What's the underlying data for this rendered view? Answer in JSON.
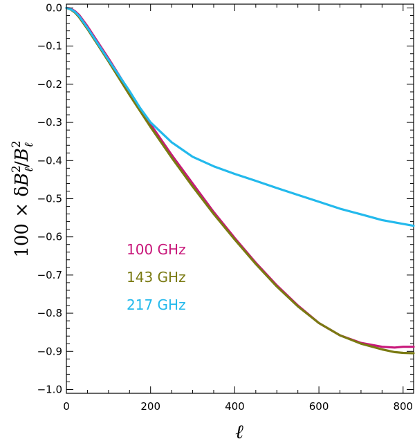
{
  "chart_data": {
    "type": "line",
    "title": "",
    "xlabel": "ℓ",
    "ylabel_parts": {
      "prefix": "100 × δ",
      "b": "B",
      "ell": "ℓ",
      "sq": "2",
      "slash": "/"
    },
    "xlim": [
      0,
      825
    ],
    "ylim": [
      -1.01,
      0.01
    ],
    "xticks": [
      0,
      200,
      400,
      600,
      800
    ],
    "xtick_labels": [
      "0",
      "200",
      "400",
      "600",
      "800"
    ],
    "yticks": [
      0.0,
      -0.1,
      -0.2,
      -0.3,
      -0.4,
      -0.5,
      -0.6,
      -0.7,
      -0.8,
      -0.9,
      -1.0
    ],
    "ytick_labels": [
      "0.0",
      "−0.1",
      "−0.2",
      "−0.3",
      "−0.4",
      "−0.5",
      "−0.6",
      "−0.7",
      "−0.8",
      "−0.9",
      "−1.0"
    ],
    "series": [
      {
        "name": "100 GHz",
        "color": "#c8177a",
        "x": [
          0,
          10,
          20,
          30,
          50,
          75,
          100,
          150,
          200,
          250,
          300,
          350,
          400,
          450,
          500,
          550,
          600,
          650,
          700,
          750,
          780,
          800,
          825
        ],
        "y": [
          0.0,
          -0.002,
          -0.008,
          -0.018,
          -0.048,
          -0.09,
          -0.132,
          -0.22,
          -0.305,
          -0.385,
          -0.46,
          -0.535,
          -0.603,
          -0.668,
          -0.727,
          -0.78,
          -0.826,
          -0.858,
          -0.878,
          -0.888,
          -0.89,
          -0.888,
          -0.888
        ]
      },
      {
        "name": "143 GHz",
        "color": "#7a7a12",
        "x": [
          0,
          10,
          20,
          30,
          50,
          75,
          100,
          150,
          200,
          250,
          300,
          350,
          400,
          450,
          500,
          550,
          600,
          650,
          700,
          750,
          780,
          800,
          825
        ],
        "y": [
          0.0,
          -0.004,
          -0.012,
          -0.024,
          -0.055,
          -0.097,
          -0.14,
          -0.228,
          -0.312,
          -0.392,
          -0.468,
          -0.54,
          -0.607,
          -0.671,
          -0.73,
          -0.782,
          -0.826,
          -0.858,
          -0.88,
          -0.895,
          -0.902,
          -0.904,
          -0.905
        ]
      },
      {
        "name": "217 GHz",
        "color": "#23b9ec",
        "x": [
          0,
          10,
          20,
          30,
          50,
          75,
          100,
          150,
          175,
          200,
          250,
          300,
          350,
          400,
          450,
          500,
          550,
          600,
          650,
          700,
          750,
          800,
          825
        ],
        "y": [
          0.0,
          -0.003,
          -0.01,
          -0.021,
          -0.052,
          -0.094,
          -0.136,
          -0.218,
          -0.262,
          -0.3,
          -0.352,
          -0.39,
          -0.415,
          -0.435,
          -0.453,
          -0.472,
          -0.49,
          -0.508,
          -0.526,
          -0.541,
          -0.556,
          -0.566,
          -0.571
        ]
      }
    ],
    "legend_position": "lower-left inside"
  }
}
